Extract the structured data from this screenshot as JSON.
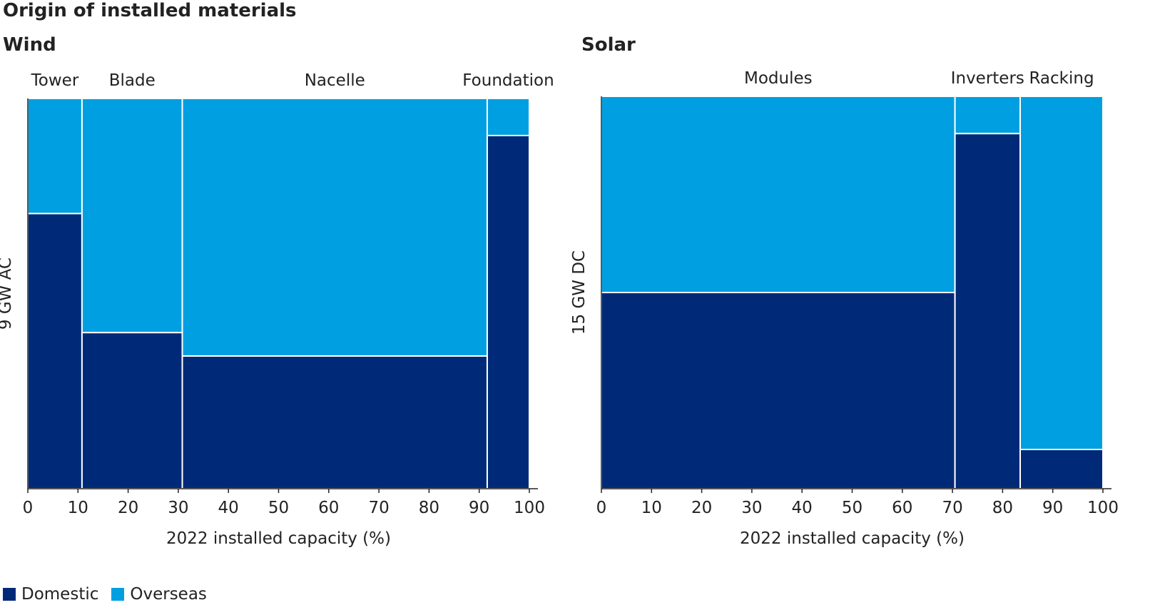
{
  "title": "Origin of installed materials",
  "legend": [
    {
      "label": "Domestic",
      "color": "#002a77"
    },
    {
      "label": "Overseas",
      "color": "#009fe1"
    }
  ],
  "colors": {
    "domestic": "#002a77",
    "overseas": "#009fe1",
    "axis": "#222222",
    "divider": "#ffffff"
  },
  "chart_data": [
    {
      "type": "mosaic",
      "title": "Wind",
      "ylabel": "9 GW AC",
      "xlabel": "2022 installed capacity (%)",
      "xlim": [
        0,
        100
      ],
      "xticks": [
        "0",
        "10",
        "20",
        "30",
        "40",
        "50",
        "60",
        "70",
        "80",
        "90",
        "100"
      ],
      "categories": [
        {
          "name": "Tower",
          "start": 0,
          "end": 10.8,
          "domestic_share": 70.5
        },
        {
          "name": "Blade",
          "start": 10.8,
          "end": 30.8,
          "domestic_share": 40
        },
        {
          "name": "Nacelle",
          "start": 30.8,
          "end": 91.6,
          "domestic_share": 34
        },
        {
          "name": "Foundation",
          "start": 91.6,
          "end": 100,
          "domestic_share": 90.5
        }
      ]
    },
    {
      "type": "mosaic",
      "title": "Solar",
      "ylabel": "15 GW DC",
      "xlabel": "2022 installed capacity (%)",
      "xlim": [
        0,
        100
      ],
      "xticks": [
        "0",
        "10",
        "20",
        "30",
        "40",
        "50",
        "60",
        "70",
        "80",
        "90",
        "100"
      ],
      "categories": [
        {
          "name": "Modules",
          "start": 0,
          "end": 70.5,
          "domestic_share": 50
        },
        {
          "name": "Inverters",
          "start": 70.5,
          "end": 83.5,
          "domestic_share": 90.5
        },
        {
          "name": "Racking",
          "start": 83.5,
          "end": 100,
          "domestic_share": 10
        }
      ]
    }
  ]
}
